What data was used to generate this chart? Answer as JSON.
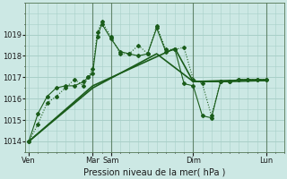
{
  "background_color": "#cce8e4",
  "grid_color": "#a8cfc8",
  "line_color": "#1a5c1a",
  "xlabel": "Pression niveau de la mer( hPa )",
  "ylim": [
    1013.5,
    1020.5
  ],
  "yticks": [
    1014,
    1015,
    1016,
    1017,
    1018,
    1019
  ],
  "xlim": [
    -0.2,
    14.0
  ],
  "series": [
    {
      "x": [
        0,
        0.5,
        1.0,
        1.5,
        2.0,
        2.5,
        3.0,
        3.25,
        3.5,
        3.75,
        4.0,
        4.5,
        5.0,
        5.5,
        6.0,
        6.5,
        7.0,
        7.5,
        8.0,
        8.5,
        9.0,
        9.5,
        10.0,
        10.5,
        11.0,
        11.5,
        12.0,
        12.5,
        13.0
      ],
      "y": [
        1014.0,
        1014.8,
        1015.8,
        1016.1,
        1016.5,
        1016.9,
        1016.6,
        1017.0,
        1017.4,
        1019.1,
        1019.6,
        1018.9,
        1018.1,
        1018.1,
        1018.5,
        1018.1,
        1019.4,
        1018.3,
        1018.3,
        1018.4,
        1016.9,
        1016.7,
        1015.2,
        1016.8,
        1016.8,
        1016.9,
        1016.9,
        1016.9,
        1016.9
      ],
      "linestyle": ":",
      "marker": "D",
      "markersize": 2.0,
      "lw": 0.8
    },
    {
      "x": [
        0,
        0.5,
        1.0,
        1.5,
        2.0,
        2.5,
        3.0,
        3.25,
        3.5,
        3.75,
        4.0,
        4.5,
        5.0,
        5.5,
        6.0,
        6.5,
        7.0,
        7.5,
        8.0,
        8.5,
        9.0,
        9.5,
        10.0,
        10.5,
        11.0,
        11.5,
        12.0,
        12.5,
        13.0
      ],
      "y": [
        1014.0,
        1015.3,
        1016.1,
        1016.5,
        1016.6,
        1016.6,
        1016.8,
        1017.0,
        1017.2,
        1018.9,
        1019.5,
        1018.8,
        1018.2,
        1018.1,
        1018.0,
        1018.1,
        1019.3,
        1018.2,
        1018.3,
        1016.7,
        1016.6,
        1015.2,
        1015.1,
        1016.8,
        1016.8,
        1016.9,
        1016.9,
        1016.9,
        1016.9
      ],
      "linestyle": "-",
      "marker": "P",
      "markersize": 2.5,
      "lw": 0.8
    },
    {
      "x": [
        0,
        3.5,
        7.0,
        9.0,
        11.0,
        13.0
      ],
      "y": [
        1014.0,
        1016.5,
        1018.1,
        1016.8,
        1016.8,
        1016.85
      ],
      "linestyle": "-",
      "marker": null,
      "markersize": 0,
      "lw": 1.2
    },
    {
      "x": [
        0,
        3.5,
        8.0,
        9.0,
        11.0,
        13.0
      ],
      "y": [
        1014.0,
        1016.6,
        1018.35,
        1016.8,
        1016.85,
        1016.85
      ],
      "linestyle": "-",
      "marker": null,
      "markersize": 0,
      "lw": 1.2
    }
  ],
  "vlines": [
    3.5,
    4.5,
    9.0,
    13.0
  ],
  "xtick_positions": [
    0,
    3.5,
    4.5,
    9.0,
    13.0
  ],
  "xtick_labels": [
    "Ven",
    "Mar",
    "Sam",
    "Dim",
    "Lun"
  ]
}
